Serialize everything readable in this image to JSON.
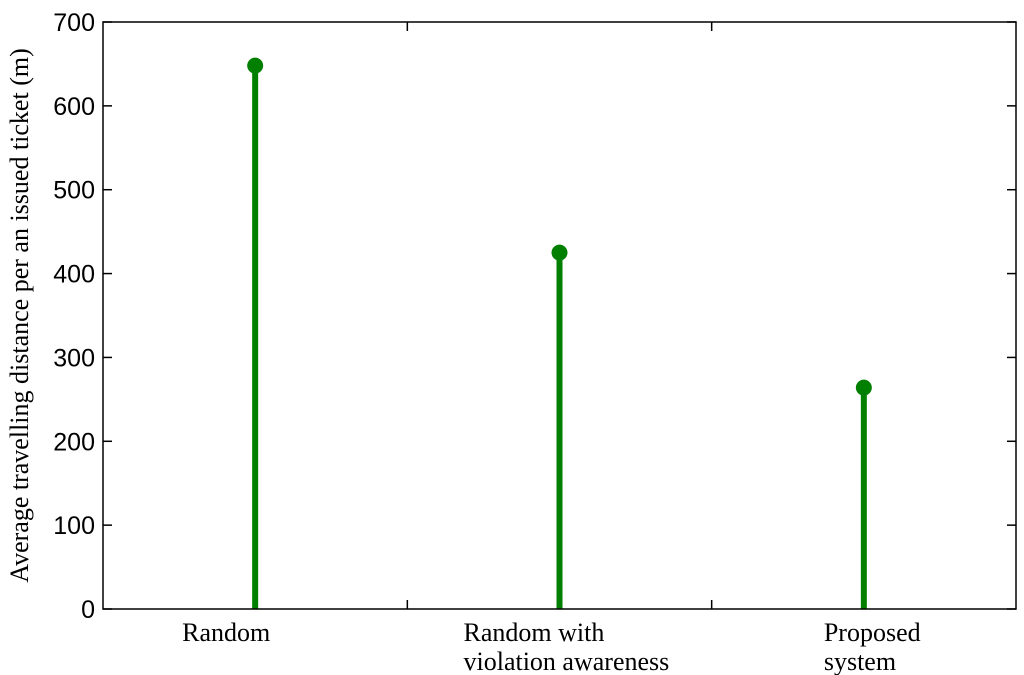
{
  "chart_data": {
    "type": "stem",
    "categories": [
      [
        "Random"
      ],
      [
        "Random with",
        "violation awareness"
      ],
      [
        "Proposed",
        "system"
      ]
    ],
    "values": [
      648,
      425,
      264
    ],
    "ylabel": "Average travelling distance per an issued ticket (m)",
    "xlabel": "",
    "ylim": [
      0,
      700
    ],
    "yticks": [
      0,
      100,
      200,
      300,
      400,
      500,
      600,
      700
    ],
    "xlim": [
      0.5,
      3.5
    ],
    "xticks": [
      1.5,
      2.5
    ],
    "grid": false,
    "series_color": "#007f00"
  }
}
